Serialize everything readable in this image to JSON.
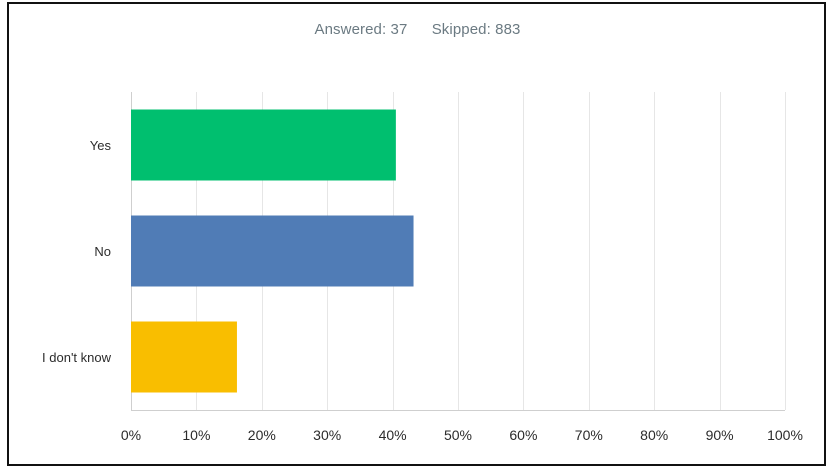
{
  "summary": {
    "answered_label": "Answered: 37",
    "skipped_label": "Skipped: 883"
  },
  "colors": {
    "yes": "#00bf6f",
    "no": "#507cb6",
    "i_dont_know": "#f9be00",
    "grid": "#e6e6e6",
    "axis": "#cfcfcf"
  },
  "chart_data": {
    "type": "bar",
    "orientation": "horizontal",
    "categories": [
      "Yes",
      "No",
      "I don't know"
    ],
    "values": [
      40.5,
      43.2,
      16.2
    ],
    "unit": "%",
    "xlim": [
      0,
      100
    ],
    "x_tick_labels": [
      "0%",
      "10%",
      "20%",
      "30%",
      "40%",
      "50%",
      "60%",
      "70%",
      "80%",
      "90%",
      "100%"
    ],
    "grid": true,
    "legend": "none"
  }
}
